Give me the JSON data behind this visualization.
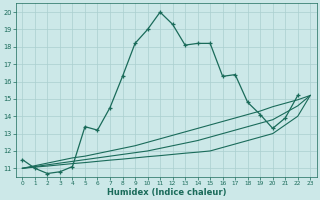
{
  "xlabel": "Humidex (Indice chaleur)",
  "background_color": "#cce8e8",
  "line_color": "#1a6b5a",
  "grid_color": "#aacfcf",
  "x_main": [
    0,
    1,
    2,
    3,
    4,
    5,
    6,
    7,
    8,
    9,
    10,
    11,
    12,
    13,
    14,
    15,
    16,
    17,
    18,
    19,
    20,
    21,
    22
  ],
  "y_main": [
    11.5,
    11.0,
    10.7,
    10.8,
    11.1,
    13.4,
    13.2,
    14.5,
    16.3,
    18.2,
    19.0,
    20.0,
    19.3,
    18.1,
    18.2,
    18.2,
    16.3,
    16.4,
    14.8,
    14.1,
    13.3,
    13.9,
    15.2
  ],
  "x_lines": [
    0,
    1,
    2,
    3,
    4,
    5,
    6,
    7,
    8,
    9,
    10,
    11,
    12,
    13,
    14,
    15,
    16,
    17,
    18,
    19,
    20,
    21,
    22,
    23
  ],
  "y_line1": [
    11.0,
    11.07,
    11.13,
    11.2,
    11.27,
    11.33,
    11.4,
    11.47,
    11.53,
    11.6,
    11.67,
    11.73,
    11.8,
    11.87,
    11.93,
    12.0,
    12.2,
    12.4,
    12.6,
    12.8,
    13.0,
    13.5,
    14.0,
    15.2
  ],
  "y_line2": [
    11.0,
    11.1,
    11.2,
    11.3,
    11.4,
    11.5,
    11.6,
    11.7,
    11.8,
    11.9,
    12.0,
    12.15,
    12.3,
    12.45,
    12.6,
    12.8,
    13.0,
    13.2,
    13.4,
    13.6,
    13.8,
    14.2,
    14.6,
    15.2
  ],
  "y_line3": [
    11.0,
    11.15,
    11.3,
    11.45,
    11.6,
    11.7,
    11.85,
    12.0,
    12.15,
    12.3,
    12.5,
    12.7,
    12.9,
    13.1,
    13.3,
    13.5,
    13.7,
    13.9,
    14.1,
    14.3,
    14.55,
    14.75,
    14.95,
    15.2
  ],
  "xlim": [
    -0.5,
    23.5
  ],
  "ylim": [
    10.5,
    20.5
  ],
  "xticks": [
    0,
    1,
    2,
    3,
    4,
    5,
    6,
    7,
    8,
    9,
    10,
    11,
    12,
    13,
    14,
    15,
    16,
    17,
    18,
    19,
    20,
    21,
    22,
    23
  ],
  "yticks": [
    11,
    12,
    13,
    14,
    15,
    16,
    17,
    18,
    19,
    20
  ]
}
